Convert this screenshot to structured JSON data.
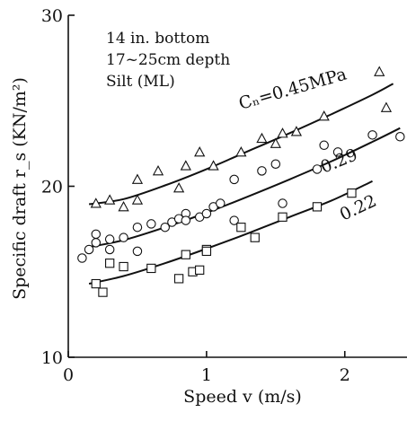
{
  "chart_data": {
    "type": "scatter",
    "title": "",
    "xlabel": "Speed v (m/s)",
    "ylabel": "Specific draft r_s (KN/m²)",
    "xlim": [
      0,
      2.45
    ],
    "ylim": [
      10,
      30
    ],
    "x_ticks": [
      0,
      1,
      2
    ],
    "y_ticks": [
      10,
      20,
      30
    ],
    "x_tick_labels": [
      "0",
      "1",
      "2"
    ],
    "y_tick_labels": [
      "10",
      "20",
      "30"
    ],
    "grid": false,
    "legend": "none",
    "notes": [
      "14 in. bottom",
      "17~25cm depth",
      "Silt (ML)"
    ],
    "series": [
      {
        "name": "Cₙ=0.45MPa",
        "marker": "triangle",
        "points": [
          [
            0.2,
            19.0
          ],
          [
            0.3,
            19.2
          ],
          [
            0.4,
            18.8
          ],
          [
            0.5,
            19.2
          ],
          [
            0.5,
            20.4
          ],
          [
            0.65,
            20.9
          ],
          [
            0.8,
            19.9
          ],
          [
            0.85,
            21.2
          ],
          [
            0.95,
            22.0
          ],
          [
            1.05,
            21.2
          ],
          [
            1.25,
            22.0
          ],
          [
            1.4,
            22.8
          ],
          [
            1.5,
            22.5
          ],
          [
            1.55,
            23.1
          ],
          [
            1.65,
            23.2
          ],
          [
            1.85,
            24.1
          ],
          [
            2.25,
            26.7
          ],
          [
            2.3,
            24.6
          ]
        ],
        "curve": [
          [
            0.15,
            18.95
          ],
          [
            0.4,
            19.25
          ],
          [
            0.7,
            20.05
          ],
          [
            1.0,
            21.0
          ],
          [
            1.3,
            22.05
          ],
          [
            1.6,
            23.1
          ],
          [
            1.9,
            24.2
          ],
          [
            2.2,
            25.35
          ],
          [
            2.35,
            26.0
          ]
        ]
      },
      {
        "name": "0.29",
        "marker": "circle",
        "points": [
          [
            0.1,
            15.8
          ],
          [
            0.15,
            16.3
          ],
          [
            0.2,
            17.2
          ],
          [
            0.2,
            16.7
          ],
          [
            0.3,
            16.9
          ],
          [
            0.3,
            16.3
          ],
          [
            0.4,
            17.0
          ],
          [
            0.5,
            16.2
          ],
          [
            0.5,
            17.6
          ],
          [
            0.6,
            17.8
          ],
          [
            0.7,
            17.6
          ],
          [
            0.75,
            17.9
          ],
          [
            0.8,
            18.1
          ],
          [
            0.85,
            18.4
          ],
          [
            0.85,
            18.0
          ],
          [
            0.95,
            18.2
          ],
          [
            1.0,
            18.4
          ],
          [
            1.05,
            18.8
          ],
          [
            1.1,
            19.0
          ],
          [
            1.2,
            18.0
          ],
          [
            1.2,
            20.4
          ],
          [
            1.4,
            20.9
          ],
          [
            1.5,
            21.3
          ],
          [
            1.55,
            19.0
          ],
          [
            1.8,
            21.0
          ],
          [
            1.85,
            22.4
          ],
          [
            1.95,
            22.0
          ],
          [
            2.2,
            23.0
          ],
          [
            2.4,
            22.9
          ]
        ],
        "curve": [
          [
            0.15,
            16.45
          ],
          [
            0.4,
            16.85
          ],
          [
            0.7,
            17.6
          ],
          [
            1.0,
            18.45
          ],
          [
            1.3,
            19.4
          ],
          [
            1.6,
            20.4
          ],
          [
            1.9,
            21.45
          ],
          [
            2.2,
            22.6
          ],
          [
            2.4,
            23.4
          ]
        ]
      },
      {
        "name": "0.22",
        "marker": "square",
        "points": [
          [
            0.2,
            14.3
          ],
          [
            0.25,
            13.8
          ],
          [
            0.3,
            15.5
          ],
          [
            0.4,
            15.3
          ],
          [
            0.6,
            15.2
          ],
          [
            0.8,
            14.6
          ],
          [
            0.85,
            16.0
          ],
          [
            0.9,
            15.0
          ],
          [
            0.95,
            15.1
          ],
          [
            1.0,
            16.3
          ],
          [
            1.0,
            16.2
          ],
          [
            1.25,
            17.6
          ],
          [
            1.35,
            17.0
          ],
          [
            1.55,
            18.2
          ],
          [
            1.8,
            18.8
          ],
          [
            2.05,
            19.6
          ]
        ],
        "curve": [
          [
            0.15,
            14.3
          ],
          [
            0.4,
            14.75
          ],
          [
            0.7,
            15.5
          ],
          [
            1.0,
            16.35
          ],
          [
            1.3,
            17.25
          ],
          [
            1.6,
            18.2
          ],
          [
            1.9,
            19.15
          ],
          [
            2.15,
            20.1
          ],
          [
            2.2,
            20.3
          ]
        ]
      }
    ]
  }
}
